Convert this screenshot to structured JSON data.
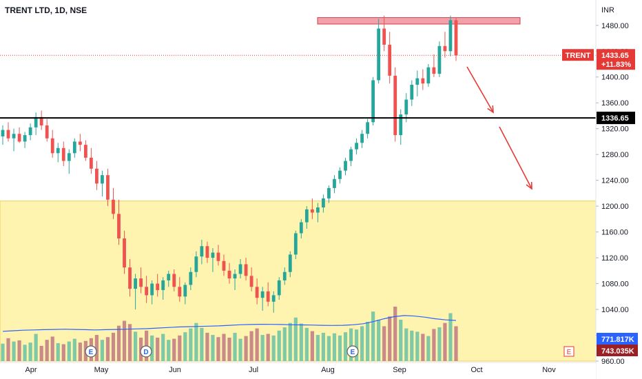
{
  "title": "TRENT LTD, 1D, NSE",
  "currency": "INR",
  "chart_data": {
    "type": "candlestick",
    "title": "TRENT LTD, 1D, NSE",
    "ylabel": "INR",
    "ylim": [
      960,
      1515
    ],
    "y_ticks": [
      "1480.00",
      "1440.00",
      "1400.00",
      "1360.00",
      "1320.00",
      "1280.00",
      "1240.00",
      "1200.00",
      "1160.00",
      "1120.00",
      "1080.00",
      "1040.00",
      "1000.00",
      "960.00"
    ],
    "y_tick_values": [
      1480,
      1440,
      1400,
      1360,
      1320,
      1280,
      1240,
      1200,
      1160,
      1120,
      1080,
      1040,
      1000,
      960
    ],
    "x_ticks": [
      "Apr",
      "May",
      "Jun",
      "Jul",
      "Aug",
      "Sep",
      "Oct",
      "Nov"
    ],
    "x_tick_values": [
      45,
      147,
      254,
      368,
      476,
      580,
      692,
      797
    ],
    "series": [
      {
        "values": [
          [
            1308,
            1325,
            1295,
            1318
          ],
          [
            1318,
            1330,
            1300,
            1305
          ],
          [
            1305,
            1320,
            1285,
            1312
          ],
          [
            1312,
            1322,
            1298,
            1300
          ],
          [
            1300,
            1315,
            1290,
            1310
          ],
          [
            1310,
            1328,
            1302,
            1322
          ],
          [
            1322,
            1345,
            1310,
            1338
          ],
          [
            1338,
            1348,
            1318,
            1325
          ],
          [
            1325,
            1335,
            1300,
            1305
          ],
          [
            1305,
            1318,
            1275,
            1282
          ],
          [
            1282,
            1298,
            1268,
            1290
          ],
          [
            1290,
            1300,
            1262,
            1270
          ],
          [
            1270,
            1288,
            1250,
            1282
          ],
          [
            1282,
            1305,
            1275,
            1300
          ],
          [
            1300,
            1312,
            1285,
            1295
          ],
          [
            1295,
            1302,
            1270,
            1275
          ],
          [
            1275,
            1290,
            1250,
            1258
          ],
          [
            1258,
            1270,
            1225,
            1235
          ],
          [
            1235,
            1255,
            1215,
            1248
          ],
          [
            1248,
            1258,
            1200,
            1210
          ],
          [
            1210,
            1228,
            1180,
            1188
          ],
          [
            1188,
            1210,
            1140,
            1150
          ],
          [
            1150,
            1162,
            1095,
            1105
          ],
          [
            1105,
            1118,
            1060,
            1072
          ],
          [
            1072,
            1095,
            1040,
            1088
          ],
          [
            1088,
            1105,
            1065,
            1075
          ],
          [
            1075,
            1092,
            1050,
            1062
          ],
          [
            1062,
            1085,
            1048,
            1080
          ],
          [
            1080,
            1095,
            1060,
            1070
          ],
          [
            1070,
            1090,
            1055,
            1085
          ],
          [
            1085,
            1100,
            1075,
            1095
          ],
          [
            1095,
            1102,
            1068,
            1075
          ],
          [
            1075,
            1090,
            1052,
            1060
          ],
          [
            1060,
            1082,
            1048,
            1078
          ],
          [
            1078,
            1105,
            1070,
            1098
          ],
          [
            1098,
            1130,
            1090,
            1122
          ],
          [
            1122,
            1148,
            1110,
            1138
          ],
          [
            1138,
            1145,
            1112,
            1120
          ],
          [
            1120,
            1135,
            1098,
            1128
          ],
          [
            1128,
            1140,
            1108,
            1115
          ],
          [
            1115,
            1125,
            1092,
            1100
          ],
          [
            1100,
            1112,
            1080,
            1088
          ],
          [
            1088,
            1102,
            1070,
            1095
          ],
          [
            1095,
            1118,
            1088,
            1110
          ],
          [
            1110,
            1120,
            1085,
            1092
          ],
          [
            1092,
            1105,
            1068,
            1075
          ],
          [
            1075,
            1088,
            1048,
            1058
          ],
          [
            1058,
            1075,
            1038,
            1068
          ],
          [
            1068,
            1082,
            1045,
            1052
          ],
          [
            1052,
            1068,
            1035,
            1062
          ],
          [
            1062,
            1090,
            1055,
            1085
          ],
          [
            1085,
            1105,
            1078,
            1098
          ],
          [
            1098,
            1130,
            1090,
            1125
          ],
          [
            1125,
            1162,
            1118,
            1158
          ],
          [
            1158,
            1180,
            1150,
            1175
          ],
          [
            1175,
            1200,
            1165,
            1195
          ],
          [
            1195,
            1212,
            1180,
            1190
          ],
          [
            1190,
            1205,
            1175,
            1198
          ],
          [
            1198,
            1218,
            1190,
            1212
          ],
          [
            1212,
            1232,
            1205,
            1228
          ],
          [
            1228,
            1248,
            1220,
            1242
          ],
          [
            1242,
            1260,
            1235,
            1255
          ],
          [
            1255,
            1275,
            1248,
            1270
          ],
          [
            1270,
            1292,
            1262,
            1288
          ],
          [
            1288,
            1305,
            1280,
            1298
          ],
          [
            1298,
            1318,
            1290,
            1312
          ],
          [
            1312,
            1335,
            1305,
            1330
          ],
          [
            1330,
            1400,
            1325,
            1395
          ],
          [
            1395,
            1490,
            1390,
            1475
          ],
          [
            1475,
            1495,
            1440,
            1450
          ],
          [
            1450,
            1470,
            1390,
            1402
          ],
          [
            1402,
            1415,
            1300,
            1310
          ],
          [
            1310,
            1350,
            1295,
            1342
          ],
          [
            1342,
            1375,
            1330,
            1365
          ],
          [
            1365,
            1395,
            1355,
            1388
          ],
          [
            1388,
            1410,
            1370,
            1398
          ],
          [
            1398,
            1412,
            1380,
            1390
          ],
          [
            1390,
            1420,
            1385,
            1415
          ],
          [
            1415,
            1435,
            1400,
            1405
          ],
          [
            1405,
            1455,
            1400,
            1448
          ],
          [
            1448,
            1470,
            1430,
            1440
          ],
          [
            1440,
            1495,
            1432,
            1488
          ],
          [
            1488,
            1492,
            1425,
            1433.65
          ]
        ]
      }
    ],
    "volume": {
      "ylim": [
        0,
        1000
      ],
      "values": [
        320,
        420,
        360,
        380,
        300,
        340,
        500,
        280,
        390,
        450,
        330,
        310,
        360,
        410,
        340,
        370,
        420,
        480,
        390,
        440,
        520,
        650,
        740,
        680,
        540,
        430,
        560,
        470,
        430,
        500,
        390,
        410,
        470,
        530,
        600,
        700,
        610,
        520,
        480,
        440,
        500,
        430,
        520,
        410,
        460,
        550,
        600,
        480,
        500,
        470,
        560,
        620,
        700,
        800,
        690,
        610,
        550,
        480,
        520,
        460,
        510,
        470,
        530,
        600,
        580,
        640,
        720,
        910,
        760,
        640,
        820,
        1000,
        760,
        600,
        560,
        540,
        500,
        460,
        590,
        620,
        700,
        880,
        640
      ],
      "ma_values": [
        420,
        430,
        440,
        445,
        450,
        455,
        460,
        455,
        450,
        445,
        450,
        455,
        460,
        465,
        470,
        480,
        490,
        500,
        505,
        510,
        515,
        520,
        530,
        540,
        545,
        550,
        548,
        545,
        540,
        538,
        535,
        530,
        528,
        530,
        540,
        560,
        600,
        650,
        690,
        710,
        700,
        680,
        650,
        630,
        620
      ],
      "ma_label": "771.817K",
      "last_label": "743.035K"
    },
    "resistance_zone": {
      "y0": 1482,
      "y1": 1492,
      "label": ""
    },
    "demand_zone": {
      "y0": 960,
      "y1": 1208
    },
    "support_level": {
      "value": 1336.65,
      "label": "1336.65"
    },
    "last_price": {
      "value": 1433.65,
      "label": "1433.65",
      "change": "+11.83%",
      "symbol": "TRENT"
    },
    "markers": [
      {
        "x_category": "May",
        "label": "E"
      },
      {
        "x_category": "May",
        "label": "D"
      },
      {
        "x_category": "Aug",
        "label": "E"
      },
      {
        "x_category": "Nov",
        "label": "E"
      }
    ]
  },
  "colors": {
    "up": "#26a69a",
    "down": "#ef5350",
    "up_volume": "#80c9a6",
    "down_volume": "#c98a88",
    "demand_fill": "#fff3b0",
    "resistance_fill": "#f3a0a8",
    "arrow": "#e53935",
    "ma_line": "#2962ff",
    "support_line": "#000000",
    "badge_red": "#e53935",
    "badge_dark": "#9b2025",
    "badge_blue": "#2962ff"
  }
}
